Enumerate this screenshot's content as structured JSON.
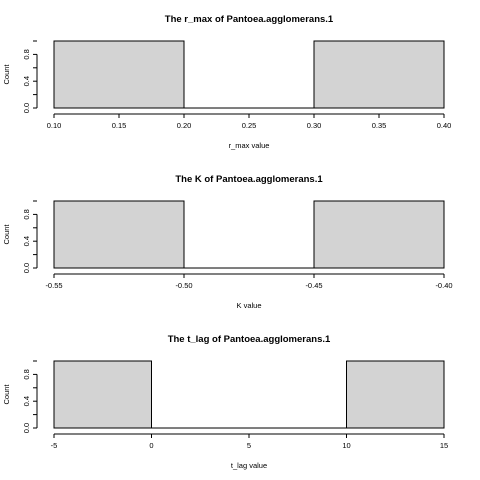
{
  "chart_data": [
    {
      "type": "bar",
      "title": "The r_max of Pantoea.agglomerans.1",
      "xlabel": "r_max value",
      "ylabel": "Count",
      "bins": [
        {
          "from": 0.1,
          "to": 0.2,
          "count": 1
        },
        {
          "from": 0.2,
          "to": 0.3,
          "count": 0
        },
        {
          "from": 0.3,
          "to": 0.4,
          "count": 1
        }
      ],
      "xlim": [
        0.1,
        0.4
      ],
      "ylim": [
        0,
        1
      ],
      "xticks": [
        "0.10",
        "0.15",
        "0.20",
        "0.25",
        "0.30",
        "0.35",
        "0.40"
      ],
      "xtick_values": [
        0.1,
        0.15,
        0.2,
        0.25,
        0.3,
        0.35,
        0.4
      ],
      "yticks": [
        "0.0",
        "0.4",
        "0.8"
      ],
      "ytick_values": [
        0,
        0.4,
        0.8
      ],
      "grid": false,
      "fill": "#d3d3d3"
    },
    {
      "type": "bar",
      "title": "The K of Pantoea.agglomerans.1",
      "xlabel": "K value",
      "ylabel": "Count",
      "bins": [
        {
          "from": -0.55,
          "to": -0.5,
          "count": 1
        },
        {
          "from": -0.5,
          "to": -0.45,
          "count": 0
        },
        {
          "from": -0.45,
          "to": -0.4,
          "count": 1
        }
      ],
      "xlim": [
        -0.55,
        -0.4
      ],
      "ylim": [
        0,
        1
      ],
      "xticks": [
        "-0.55",
        "-0.50",
        "-0.45",
        "-0.40"
      ],
      "xtick_values": [
        -0.55,
        -0.5,
        -0.45,
        -0.4
      ],
      "yticks": [
        "0.0",
        "0.4",
        "0.8"
      ],
      "ytick_values": [
        0,
        0.4,
        0.8
      ],
      "grid": false,
      "fill": "#d3d3d3"
    },
    {
      "type": "bar",
      "title": "The t_lag of Pantoea.agglomerans.1",
      "xlabel": "t_lag value",
      "ylabel": "Count",
      "bins": [
        {
          "from": -5,
          "to": 0,
          "count": 1
        },
        {
          "from": 0,
          "to": 10,
          "count": 0
        },
        {
          "from": 10,
          "to": 15,
          "count": 1
        }
      ],
      "xlim": [
        -5,
        15
      ],
      "ylim": [
        0,
        1
      ],
      "xticks": [
        "-5",
        "0",
        "5",
        "10",
        "15"
      ],
      "xtick_values": [
        -5,
        0,
        5,
        10,
        15
      ],
      "yticks": [
        "0.0",
        "0.4",
        "0.8"
      ],
      "ytick_values": [
        0,
        0.4,
        0.8
      ],
      "grid": false,
      "fill": "#d3d3d3"
    }
  ]
}
